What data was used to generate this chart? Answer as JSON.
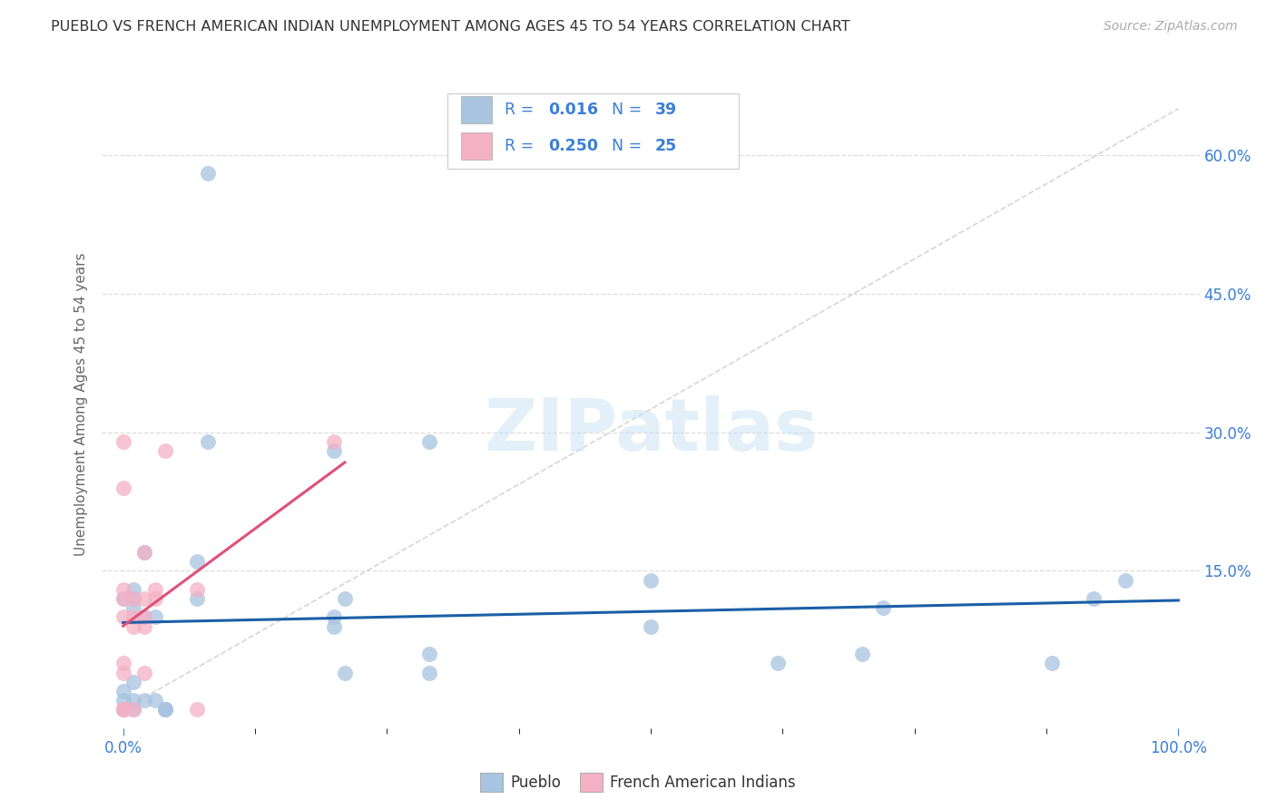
{
  "title": "PUEBLO VS FRENCH AMERICAN INDIAN UNEMPLOYMENT AMONG AGES 45 TO 54 YEARS CORRELATION CHART",
  "source": "Source: ZipAtlas.com",
  "ylabel": "Unemployment Among Ages 45 to 54 years",
  "ytick_labels": [
    "",
    "15.0%",
    "30.0%",
    "45.0%",
    "60.0%"
  ],
  "ytick_values": [
    0,
    0.15,
    0.3,
    0.45,
    0.6
  ],
  "xtick_minor": [
    0.125,
    0.25,
    0.375,
    0.5,
    0.625,
    0.75,
    0.875
  ],
  "xlim": [
    -0.02,
    1.02
  ],
  "ylim": [
    -0.02,
    0.68
  ],
  "pueblo_R": "0.016",
  "pueblo_N": "39",
  "french_R": "0.250",
  "french_N": "25",
  "pueblo_color": "#a8c4e0",
  "pueblo_line_color": "#1a5fa8",
  "french_color": "#f4b0c4",
  "french_line_color": "#e0507a",
  "diagonal_color": "#cccccc",
  "grid_color": "#dddddd",
  "watermark": "ZIPatlas",
  "legend_text_color": "#3a7fd5",
  "axis_label_color": "#3a7fd5",
  "title_color": "#333333",
  "source_color": "#aaaaaa",
  "ylabel_color": "#666666",
  "pueblo_x": [
    0.0,
    0.0,
    0.0,
    0.0,
    0.0,
    0.01,
    0.01,
    0.01,
    0.01,
    0.01,
    0.01,
    0.02,
    0.02,
    0.02,
    0.03,
    0.03,
    0.04,
    0.04,
    0.04,
    0.07,
    0.07,
    0.08,
    0.08,
    0.2,
    0.2,
    0.2,
    0.21,
    0.21,
    0.29,
    0.29,
    0.29,
    0.5,
    0.5,
    0.62,
    0.7,
    0.72,
    0.88,
    0.92,
    0.95
  ],
  "pueblo_y": [
    0.0,
    0.0,
    0.01,
    0.02,
    0.12,
    0.0,
    0.01,
    0.03,
    0.11,
    0.12,
    0.13,
    0.01,
    0.1,
    0.17,
    0.01,
    0.1,
    0.0,
    0.0,
    0.0,
    0.12,
    0.16,
    0.29,
    0.58,
    0.09,
    0.1,
    0.28,
    0.04,
    0.12,
    0.04,
    0.06,
    0.29,
    0.09,
    0.14,
    0.05,
    0.06,
    0.11,
    0.05,
    0.12,
    0.14
  ],
  "french_x": [
    0.0,
    0.0,
    0.0,
    0.0,
    0.0,
    0.0,
    0.0,
    0.0,
    0.0,
    0.0,
    0.01,
    0.01,
    0.01,
    0.01,
    0.02,
    0.02,
    0.02,
    0.02,
    0.02,
    0.03,
    0.03,
    0.04,
    0.07,
    0.07,
    0.2
  ],
  "french_y": [
    0.0,
    0.0,
    0.0,
    0.04,
    0.05,
    0.1,
    0.12,
    0.13,
    0.24,
    0.29,
    0.0,
    0.09,
    0.1,
    0.12,
    0.04,
    0.09,
    0.1,
    0.12,
    0.17,
    0.12,
    0.13,
    0.28,
    0.0,
    0.13,
    0.29
  ]
}
